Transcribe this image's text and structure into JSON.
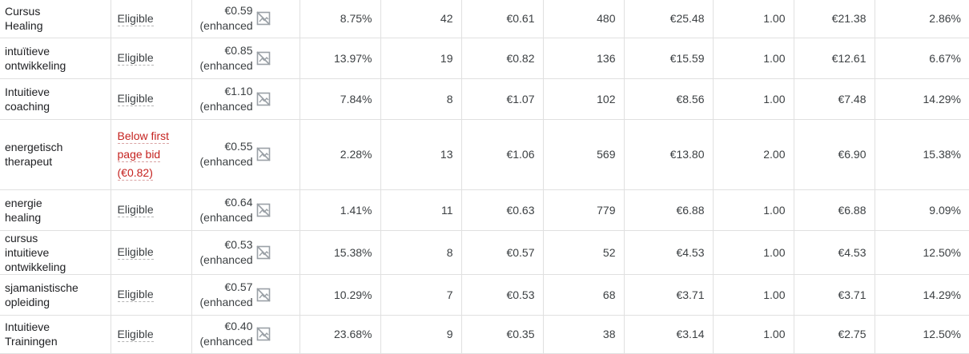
{
  "keywords_table": {
    "rows": [
      {
        "keyword": [
          "Cursus",
          "Healing"
        ],
        "status": [
          "Eligible"
        ],
        "status_type": "eligible",
        "max_cpc": "€0.59",
        "bid_strategy": "(enhanced",
        "ctr": "8.75%",
        "conversions": "42",
        "avg_cpc": "€0.61",
        "impressions": "480",
        "cost": "€25.48",
        "avg_pos": "1.00",
        "cost_per_conv": "€21.38",
        "conv_rate": "2.86%"
      },
      {
        "keyword": [
          "intuïtieve",
          "ontwikkeling"
        ],
        "status": [
          "Eligible"
        ],
        "status_type": "eligible",
        "max_cpc": "€0.85",
        "bid_strategy": "(enhanced",
        "ctr": "13.97%",
        "conversions": "19",
        "avg_cpc": "€0.82",
        "impressions": "136",
        "cost": "€15.59",
        "avg_pos": "1.00",
        "cost_per_conv": "€12.61",
        "conv_rate": "6.67%"
      },
      {
        "keyword": [
          "Intuitieve",
          "coaching"
        ],
        "status": [
          "Eligible"
        ],
        "status_type": "eligible",
        "max_cpc": "€1.10",
        "bid_strategy": "(enhanced",
        "ctr": "7.84%",
        "conversions": "8",
        "avg_cpc": "€1.07",
        "impressions": "102",
        "cost": "€8.56",
        "avg_pos": "1.00",
        "cost_per_conv": "€7.48",
        "conv_rate": "14.29%"
      },
      {
        "keyword": [
          "energetisch",
          "therapeut"
        ],
        "status": [
          "Below first",
          "page bid",
          "(€0.82)"
        ],
        "status_type": "warning",
        "max_cpc": "€0.55",
        "bid_strategy": "(enhanced",
        "ctr": "2.28%",
        "conversions": "13",
        "avg_cpc": "€1.06",
        "impressions": "569",
        "cost": "€13.80",
        "avg_pos": "2.00",
        "cost_per_conv": "€6.90",
        "conv_rate": "15.38%"
      },
      {
        "keyword": [
          "energie",
          "healing"
        ],
        "status": [
          "Eligible"
        ],
        "status_type": "eligible",
        "max_cpc": "€0.64",
        "bid_strategy": "(enhanced",
        "ctr": "1.41%",
        "conversions": "11",
        "avg_cpc": "€0.63",
        "impressions": "779",
        "cost": "€6.88",
        "avg_pos": "1.00",
        "cost_per_conv": "€6.88",
        "conv_rate": "9.09%"
      },
      {
        "keyword": [
          "cursus",
          "intuitieve",
          "ontwikkeling"
        ],
        "status": [
          "Eligible"
        ],
        "status_type": "eligible",
        "max_cpc": "€0.53",
        "bid_strategy": "(enhanced",
        "ctr": "15.38%",
        "conversions": "8",
        "avg_cpc": "€0.57",
        "impressions": "52",
        "cost": "€4.53",
        "avg_pos": "1.00",
        "cost_per_conv": "€4.53",
        "conv_rate": "12.50%"
      },
      {
        "keyword": [
          "sjamanistische",
          "opleiding"
        ],
        "status": [
          "Eligible"
        ],
        "status_type": "eligible",
        "max_cpc": "€0.57",
        "bid_strategy": "(enhanced",
        "ctr": "10.29%",
        "conversions": "7",
        "avg_cpc": "€0.53",
        "impressions": "68",
        "cost": "€3.71",
        "avg_pos": "1.00",
        "cost_per_conv": "€3.71",
        "conv_rate": "14.29%"
      },
      {
        "keyword": [
          "Intuitieve",
          "Trainingen"
        ],
        "status": [
          "Eligible"
        ],
        "status_type": "eligible",
        "max_cpc": "€0.40",
        "bid_strategy": "(enhanced",
        "ctr": "23.68%",
        "conversions": "9",
        "avg_cpc": "€0.35",
        "impressions": "38",
        "cost": "€3.14",
        "avg_pos": "1.00",
        "cost_per_conv": "€2.75",
        "conv_rate": "12.50%"
      }
    ],
    "icons": {
      "bid_icon": "broken-image-icon"
    }
  }
}
